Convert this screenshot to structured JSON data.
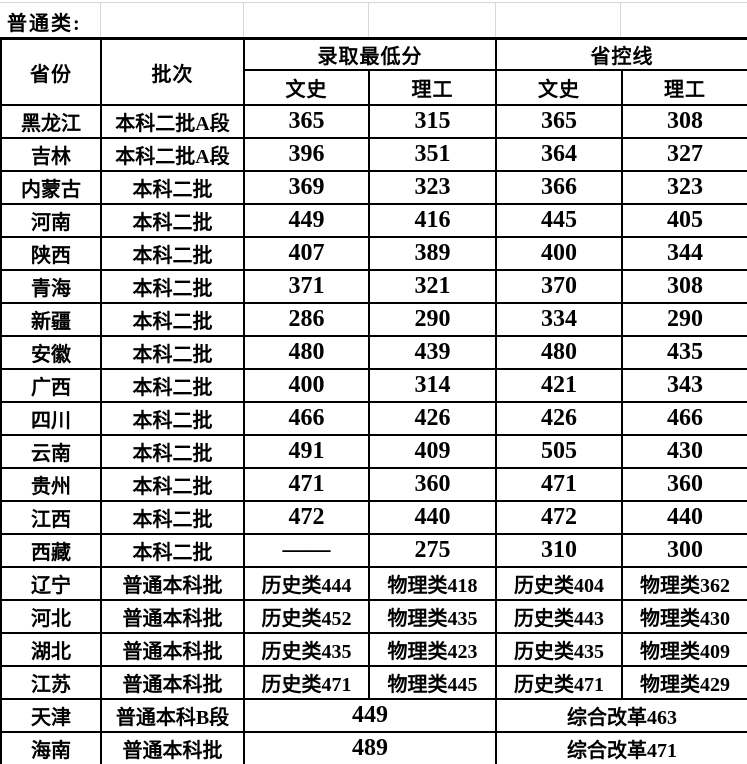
{
  "page": {
    "title": "普通类:"
  },
  "colors": {
    "background": "#ffffff",
    "text": "#000000",
    "table_border": "#000000",
    "spreadsheet_gridline": "#d8d8d8"
  },
  "table": {
    "header": {
      "province": "省份",
      "batch": "批次",
      "min_score_group": "录取最低分",
      "control_line_group": "省控线",
      "sub": [
        "文史",
        "理工",
        "文史",
        "理工"
      ]
    },
    "rows": [
      {
        "province": "黑龙江",
        "batch": "本科二批A段",
        "min_wenshi": "365",
        "min_ligong": "315",
        "ctrl_wenshi": "365",
        "ctrl_ligong": "308"
      },
      {
        "province": "吉林",
        "batch": "本科二批A段",
        "min_wenshi": "396",
        "min_ligong": "351",
        "ctrl_wenshi": "364",
        "ctrl_ligong": "327"
      },
      {
        "province": "内蒙古",
        "batch": "本科二批",
        "min_wenshi": "369",
        "min_ligong": "323",
        "ctrl_wenshi": "366",
        "ctrl_ligong": "323"
      },
      {
        "province": "河南",
        "batch": "本科二批",
        "min_wenshi": "449",
        "min_ligong": "416",
        "ctrl_wenshi": "445",
        "ctrl_ligong": "405"
      },
      {
        "province": "陕西",
        "batch": "本科二批",
        "min_wenshi": "407",
        "min_ligong": "389",
        "ctrl_wenshi": "400",
        "ctrl_ligong": "344"
      },
      {
        "province": "青海",
        "batch": "本科二批",
        "min_wenshi": "371",
        "min_ligong": "321",
        "ctrl_wenshi": "370",
        "ctrl_ligong": "308"
      },
      {
        "province": "新疆",
        "batch": "本科二批",
        "min_wenshi": "286",
        "min_ligong": "290",
        "ctrl_wenshi": "334",
        "ctrl_ligong": "290"
      },
      {
        "province": "安徽",
        "batch": "本科二批",
        "min_wenshi": "480",
        "min_ligong": "439",
        "ctrl_wenshi": "480",
        "ctrl_ligong": "435"
      },
      {
        "province": "广西",
        "batch": "本科二批",
        "min_wenshi": "400",
        "min_ligong": "314",
        "ctrl_wenshi": "421",
        "ctrl_ligong": "343"
      },
      {
        "province": "四川",
        "batch": "本科二批",
        "min_wenshi": "466",
        "min_ligong": "426",
        "ctrl_wenshi": "426",
        "ctrl_ligong": "466"
      },
      {
        "province": "云南",
        "batch": "本科二批",
        "min_wenshi": "491",
        "min_ligong": "409",
        "ctrl_wenshi": "505",
        "ctrl_ligong": "430"
      },
      {
        "province": "贵州",
        "batch": "本科二批",
        "min_wenshi": "471",
        "min_ligong": "360",
        "ctrl_wenshi": "471",
        "ctrl_ligong": "360"
      },
      {
        "province": "江西",
        "batch": "本科二批",
        "min_wenshi": "472",
        "min_ligong": "440",
        "ctrl_wenshi": "472",
        "ctrl_ligong": "440"
      },
      {
        "province": "西藏",
        "batch": "本科二批",
        "min_wenshi": "——",
        "min_ligong": "275",
        "ctrl_wenshi": "310",
        "ctrl_ligong": "300"
      },
      {
        "province": "辽宁",
        "batch": "普通本科批",
        "min_wenshi": "历史类444",
        "min_ligong": "物理类418",
        "ctrl_wenshi": "历史类404",
        "ctrl_ligong": "物理类362"
      },
      {
        "province": "河北",
        "batch": "普通本科批",
        "min_wenshi": "历史类452",
        "min_ligong": "物理类435",
        "ctrl_wenshi": "历史类443",
        "ctrl_ligong": "物理类430"
      },
      {
        "province": "湖北",
        "batch": "普通本科批",
        "min_wenshi": "历史类435",
        "min_ligong": "物理类423",
        "ctrl_wenshi": "历史类435",
        "ctrl_ligong": "物理类409"
      },
      {
        "province": "江苏",
        "batch": "普通本科批",
        "min_wenshi": "历史类471",
        "min_ligong": "物理类445",
        "ctrl_wenshi": "历史类471",
        "ctrl_ligong": "物理类429"
      },
      {
        "province": "天津",
        "batch": "普通本科B段",
        "min_merged": "449",
        "ctrl_merged": "综合改革463"
      },
      {
        "province": "海南",
        "batch": "普通本科批",
        "min_merged": "489",
        "ctrl_merged": "综合改革471"
      }
    ]
  }
}
